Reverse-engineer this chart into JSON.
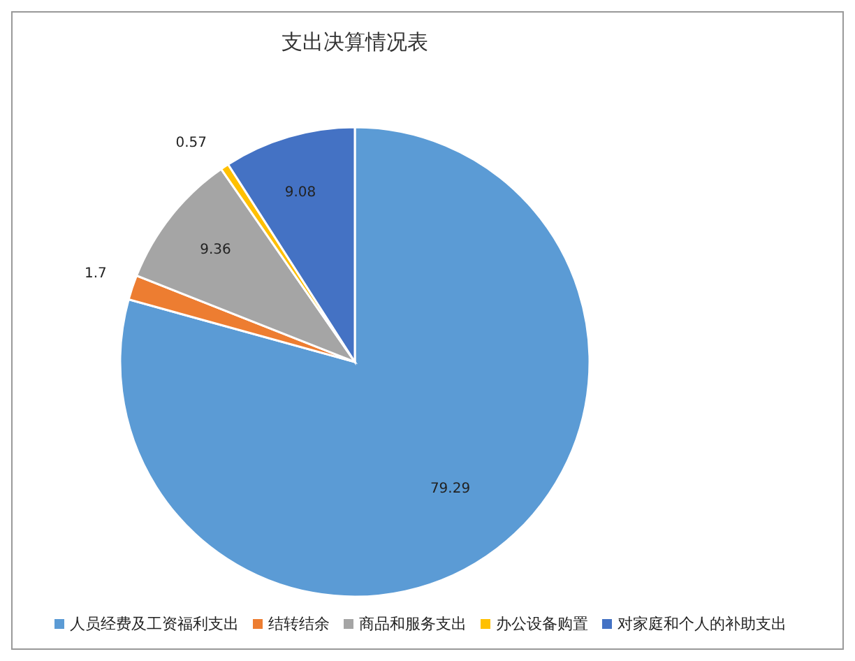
{
  "chart_data": {
    "type": "pie",
    "title": "支出决算情况表",
    "categories": [
      "人员经费及工资福利支出",
      "结转结余",
      "商品和服务支出",
      "办公设备购置",
      "对家庭和个人的补助支出"
    ],
    "values": [
      79.29,
      1.7,
      9.36,
      0.57,
      9.08
    ],
    "colors": [
      "#5b9bd5",
      "#ed7d31",
      "#a5a5a5",
      "#ffc000",
      "#4472c4"
    ],
    "data_labels": true,
    "legend": "bottom"
  }
}
